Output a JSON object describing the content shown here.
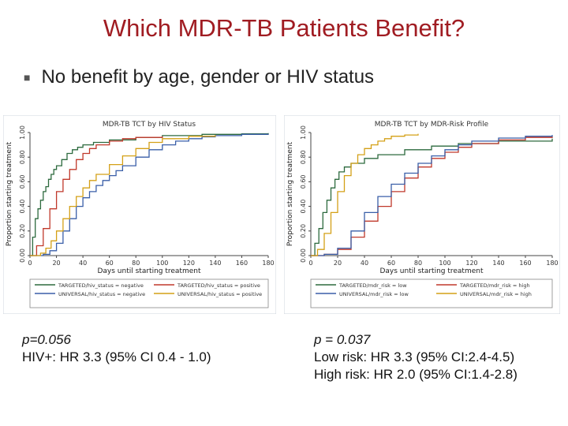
{
  "slide": {
    "title": "Which MDR-TB Patients Benefit?",
    "bullet": "No benefit by age, gender or HIV status"
  },
  "left_stats": {
    "p": "p=0.056",
    "lines": [
      "HIV+: HR 3.3 (95% CI 0.4 - 1.0)"
    ]
  },
  "right_stats": {
    "p": "p = 0.037",
    "lines": [
      "Low risk: HR 3.3 (95% CI:2.4-4.5)",
      "High risk: HR 2.0 (95% CI:1.4-2.8)"
    ]
  },
  "chart_data": [
    {
      "type": "line",
      "title": "MDR-TB TCT by HIV Status",
      "xlabel": "Days until starting treatment",
      "ylabel": "Proportion starting treatment",
      "xlim": [
        0,
        180
      ],
      "ylim": [
        0,
        1
      ],
      "xticks": [
        "0",
        "20",
        "40",
        "60",
        "80",
        "100",
        "120",
        "140",
        "160",
        "180"
      ],
      "yticks": [
        "0.00",
        "0.20",
        "0.40",
        "0.60",
        "0.80",
        "1.00"
      ],
      "legend": "bottom",
      "series": [
        {
          "name": "TARGETED/hiv_status = negative",
          "color": "#2d6a3e",
          "points": [
            [
              0,
              0
            ],
            [
              2,
              0.15
            ],
            [
              4,
              0.3
            ],
            [
              6,
              0.38
            ],
            [
              8,
              0.45
            ],
            [
              10,
              0.52
            ],
            [
              12,
              0.56
            ],
            [
              14,
              0.62
            ],
            [
              16,
              0.66
            ],
            [
              18,
              0.7
            ],
            [
              20,
              0.73
            ],
            [
              24,
              0.78
            ],
            [
              28,
              0.83
            ],
            [
              32,
              0.86
            ],
            [
              36,
              0.88
            ],
            [
              40,
              0.9
            ],
            [
              48,
              0.92
            ],
            [
              60,
              0.94
            ],
            [
              80,
              0.96
            ],
            [
              100,
              0.975
            ],
            [
              130,
              0.985
            ],
            [
              160,
              0.99
            ],
            [
              180,
              0.995
            ]
          ]
        },
        {
          "name": "TARGETED/hiv_status = positive",
          "color": "#c0392b",
          "points": [
            [
              0,
              0
            ],
            [
              5,
              0.08
            ],
            [
              10,
              0.22
            ],
            [
              15,
              0.38
            ],
            [
              20,
              0.52
            ],
            [
              25,
              0.62
            ],
            [
              30,
              0.7
            ],
            [
              35,
              0.78
            ],
            [
              40,
              0.83
            ],
            [
              45,
              0.87
            ],
            [
              50,
              0.9
            ],
            [
              60,
              0.93
            ],
            [
              70,
              0.95
            ],
            [
              80,
              0.96
            ],
            [
              100,
              0.97
            ]
          ]
        },
        {
          "name": "UNIVERSAL/hiv_status = negative",
          "color": "#3a5fa8",
          "points": [
            [
              0,
              0
            ],
            [
              10,
              0.01
            ],
            [
              15,
              0.04
            ],
            [
              20,
              0.1
            ],
            [
              25,
              0.2
            ],
            [
              30,
              0.3
            ],
            [
              35,
              0.4
            ],
            [
              40,
              0.47
            ],
            [
              45,
              0.52
            ],
            [
              50,
              0.57
            ],
            [
              55,
              0.61
            ],
            [
              60,
              0.65
            ],
            [
              65,
              0.69
            ],
            [
              70,
              0.73
            ],
            [
              80,
              0.8
            ],
            [
              90,
              0.86
            ],
            [
              100,
              0.9
            ],
            [
              110,
              0.93
            ],
            [
              120,
              0.95
            ],
            [
              130,
              0.965
            ],
            [
              140,
              0.975
            ],
            [
              160,
              0.985
            ],
            [
              180,
              0.99
            ]
          ]
        },
        {
          "name": "UNIVERSAL/hiv_status = positive",
          "color": "#d4a017",
          "points": [
            [
              0,
              0
            ],
            [
              8,
              0.02
            ],
            [
              12,
              0.06
            ],
            [
              16,
              0.12
            ],
            [
              20,
              0.2
            ],
            [
              25,
              0.3
            ],
            [
              30,
              0.4
            ],
            [
              35,
              0.48
            ],
            [
              40,
              0.55
            ],
            [
              45,
              0.61
            ],
            [
              50,
              0.66
            ],
            [
              60,
              0.74
            ],
            [
              70,
              0.81
            ],
            [
              80,
              0.87
            ],
            [
              90,
              0.92
            ],
            [
              100,
              0.95
            ],
            [
              120,
              0.97
            ],
            [
              140,
              0.98
            ]
          ]
        }
      ]
    },
    {
      "type": "line",
      "title": "MDR-TB TCT by MDR-Risk Profile",
      "xlabel": "Days until starting treatment",
      "ylabel": "Proportion starting treatment",
      "xlim": [
        0,
        180
      ],
      "ylim": [
        0,
        1
      ],
      "xticks": [
        "0",
        "20",
        "40",
        "60",
        "80",
        "100",
        "120",
        "140",
        "160",
        "180"
      ],
      "yticks": [
        "0.00",
        "0.20",
        "0.40",
        "0.60",
        "0.80",
        "1.00"
      ],
      "legend": "bottom",
      "series": [
        {
          "name": "TARGETED/mdr_risk = low",
          "color": "#2d6a3e",
          "points": [
            [
              0,
              0
            ],
            [
              3,
              0.1
            ],
            [
              6,
              0.22
            ],
            [
              9,
              0.35
            ],
            [
              12,
              0.45
            ],
            [
              15,
              0.55
            ],
            [
              18,
              0.62
            ],
            [
              21,
              0.68
            ],
            [
              25,
              0.72
            ],
            [
              30,
              0.75
            ],
            [
              40,
              0.79
            ],
            [
              50,
              0.82
            ],
            [
              70,
              0.86
            ],
            [
              90,
              0.89
            ],
            [
              110,
              0.91
            ],
            [
              140,
              0.93
            ],
            [
              180,
              0.95
            ]
          ]
        },
        {
          "name": "TARGETED/mdr_risk = high",
          "color": "#c0392b",
          "points": [
            [
              0,
              0
            ],
            [
              10,
              0.01
            ],
            [
              20,
              0.05
            ],
            [
              30,
              0.15
            ],
            [
              40,
              0.28
            ],
            [
              50,
              0.4
            ],
            [
              60,
              0.52
            ],
            [
              70,
              0.63
            ],
            [
              80,
              0.72
            ],
            [
              90,
              0.79
            ],
            [
              100,
              0.84
            ],
            [
              110,
              0.88
            ],
            [
              120,
              0.91
            ],
            [
              140,
              0.94
            ],
            [
              160,
              0.96
            ],
            [
              180,
              0.97
            ]
          ]
        },
        {
          "name": "UNIVERSAL/mdr_risk = low",
          "color": "#3a5fa8",
          "points": [
            [
              0,
              0
            ],
            [
              10,
              0.01
            ],
            [
              20,
              0.06
            ],
            [
              30,
              0.2
            ],
            [
              40,
              0.35
            ],
            [
              50,
              0.48
            ],
            [
              60,
              0.58
            ],
            [
              70,
              0.67
            ],
            [
              80,
              0.75
            ],
            [
              90,
              0.81
            ],
            [
              100,
              0.86
            ],
            [
              110,
              0.9
            ],
            [
              120,
              0.93
            ],
            [
              140,
              0.955
            ],
            [
              160,
              0.97
            ],
            [
              180,
              0.98
            ]
          ]
        },
        {
          "name": "UNIVERSAL/mdr_risk = high",
          "color": "#d4a017",
          "points": [
            [
              0,
              0
            ],
            [
              5,
              0.05
            ],
            [
              10,
              0.18
            ],
            [
              15,
              0.35
            ],
            [
              20,
              0.52
            ],
            [
              25,
              0.65
            ],
            [
              30,
              0.75
            ],
            [
              35,
              0.82
            ],
            [
              40,
              0.87
            ],
            [
              45,
              0.9
            ],
            [
              50,
              0.93
            ],
            [
              55,
              0.95
            ],
            [
              60,
              0.97
            ],
            [
              70,
              0.98
            ],
            [
              80,
              0.99
            ]
          ]
        }
      ]
    }
  ]
}
